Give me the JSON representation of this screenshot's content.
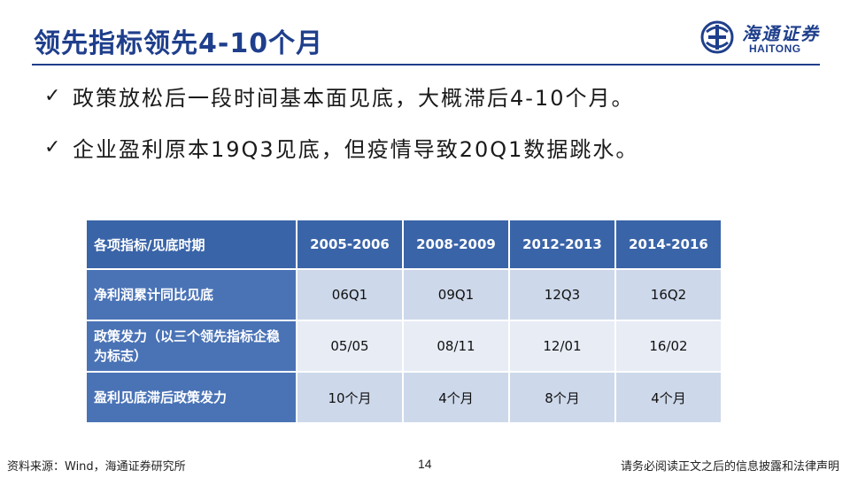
{
  "header": {
    "title": "领先指标领先4-10个月",
    "logo": {
      "cn": "海通证券",
      "en": "HAITONG"
    }
  },
  "colors": {
    "title": "#1f3f8c",
    "table_header": "#3a64a8",
    "row_label": "#4a73b6",
    "cell_dark": "#cdd8ea",
    "cell_light": "#e7ecf5"
  },
  "bullets": [
    {
      "icon": "check-icon",
      "text": "政策放松后一段时间基本面见底，大概滞后4-10个月。"
    },
    {
      "icon": "check-icon",
      "text": "企业盈利原本19Q3见底，但疫情导致20Q1数据跳水。"
    }
  ],
  "table": {
    "header_label": "各项指标/见底时期",
    "columns": [
      "2005-2006",
      "2008-2009",
      "2012-2013",
      "2014-2016"
    ],
    "rows": [
      {
        "label": "净利润累计同比见底",
        "values": [
          "06Q1",
          "09Q1",
          "12Q3",
          "16Q2"
        ]
      },
      {
        "label": "政策发力（以三个领先指标企稳为标志）",
        "values": [
          "05/05",
          "08/11",
          "12/01",
          "16/02"
        ]
      },
      {
        "label": "盈利见底滞后政策发力",
        "values": [
          "10个月",
          "4个月",
          "8个月",
          "4个月"
        ]
      }
    ]
  },
  "footer": {
    "source": "资料来源：Wind，海通证券研究所",
    "page": "14",
    "disclaimer": "请务必阅读正文之后的信息披露和法律声明"
  }
}
